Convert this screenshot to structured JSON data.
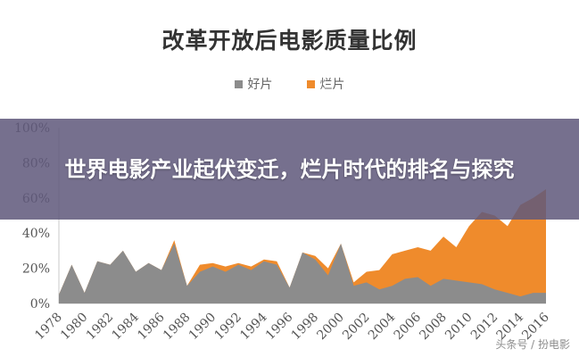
{
  "chart_data": {
    "type": "area",
    "title": "改革开放后电影质量比例",
    "legend_position": "top-center",
    "x": [
      1978,
      1979,
      1980,
      1981,
      1982,
      1983,
      1984,
      1985,
      1986,
      1987,
      1988,
      1989,
      1990,
      1991,
      1992,
      1993,
      1994,
      1995,
      1996,
      1997,
      1998,
      1999,
      2000,
      2001,
      2002,
      2003,
      2004,
      2005,
      2006,
      2007,
      2008,
      2009,
      2010,
      2011,
      2012,
      2013,
      2014,
      2015,
      2016
    ],
    "x_tick_labels": [
      "1978",
      "1980",
      "1982",
      "1984",
      "1986",
      "1988",
      "1990",
      "1992",
      "1994",
      "1996",
      "1998",
      "2000",
      "2002",
      "2004",
      "2006",
      "2008",
      "2010",
      "2012",
      "2014",
      "2016"
    ],
    "y_tick_labels": [
      "0%",
      "20%",
      "40%",
      "60%",
      "80%",
      "100%"
    ],
    "ylim": [
      0,
      100
    ],
    "xlabel": "",
    "ylabel": "",
    "grid": false,
    "series": [
      {
        "name": "好片",
        "color": "#8c8c8c",
        "values": [
          5,
          22,
          6,
          24,
          22,
          30,
          18,
          23,
          19,
          34,
          10,
          18,
          21,
          18,
          22,
          19,
          24,
          22,
          9,
          29,
          25,
          16,
          34,
          10,
          12,
          8,
          10,
          14,
          15,
          10,
          14,
          13,
          12,
          11,
          8,
          6,
          4,
          6,
          6
        ]
      },
      {
        "name": "烂片",
        "color": "#ef8b2c",
        "values": [
          0,
          0,
          0,
          0,
          0,
          0,
          0,
          0,
          0,
          2,
          0,
          4,
          2,
          3,
          1,
          2,
          1,
          2,
          0,
          0,
          2,
          4,
          0,
          2,
          6,
          11,
          18,
          16,
          17,
          20,
          24,
          19,
          32,
          41,
          42,
          38,
          52,
          54,
          59
        ]
      }
    ]
  },
  "banner": {
    "headline": "世界电影产业起伏变迁，烂片时代的排名与探究"
  },
  "watermark": {
    "text": "头条号 / 扮电影"
  }
}
